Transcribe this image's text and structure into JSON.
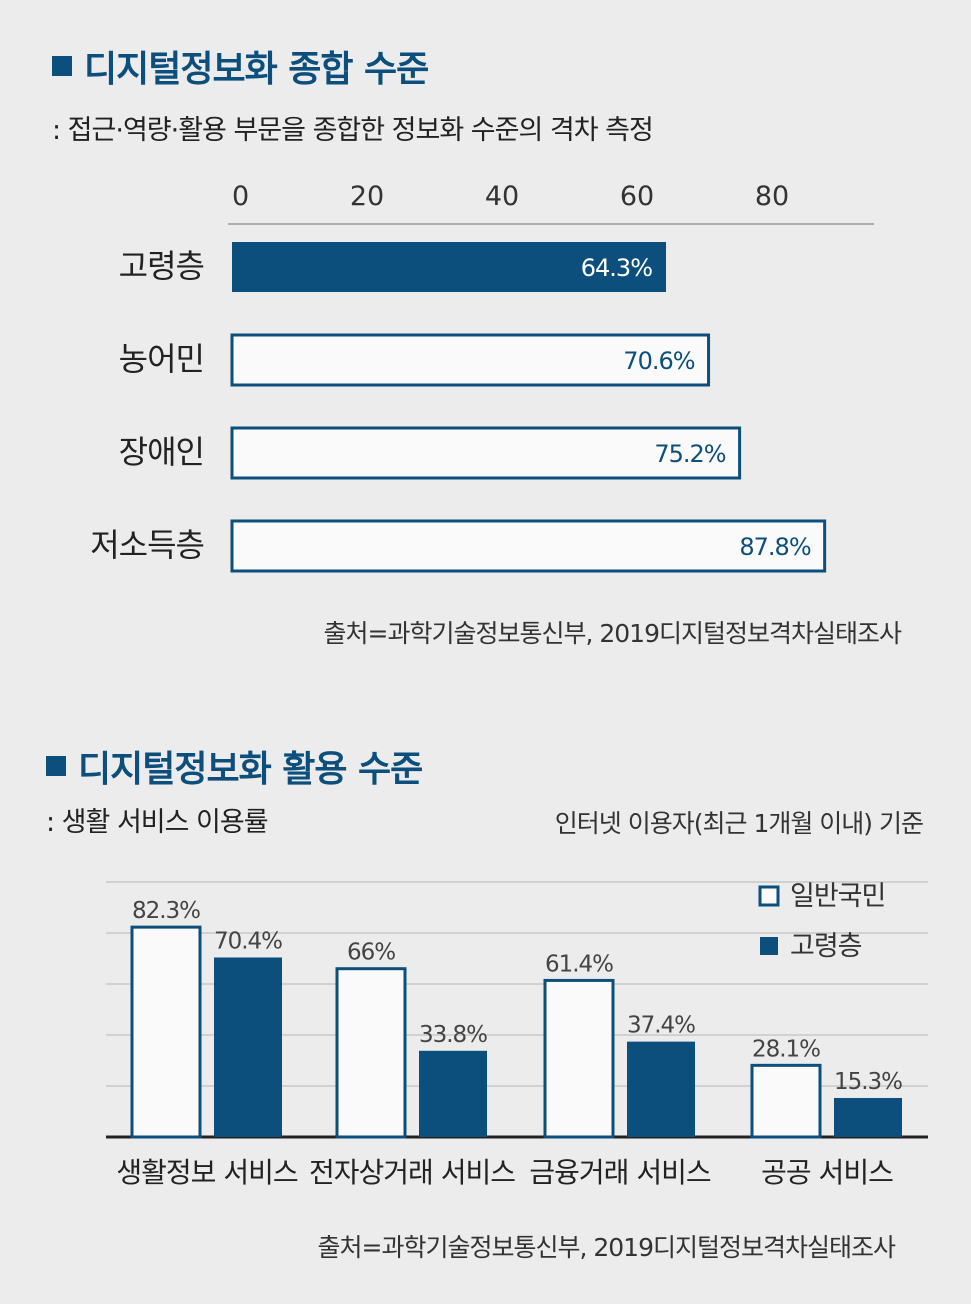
{
  "chart_data": [
    {
      "type": "bar",
      "orientation": "horizontal",
      "title": "디지털정보화 종합 수준",
      "subtitle": ": 접근·역량·활용 부문을 종합한 정보화 수준의 격차 측정",
      "categories": [
        "고령층",
        "농어민",
        "장애인",
        "저소득층"
      ],
      "values": [
        64.3,
        70.6,
        75.2,
        87.8
      ],
      "value_labels": [
        "64.3%",
        "70.6%",
        "75.2%",
        "87.8%"
      ],
      "highlight_index": 0,
      "xticks": [
        0,
        20,
        40,
        60,
        80
      ],
      "tick_labels": [
        "0",
        "20",
        "40",
        "60",
        "80"
      ],
      "xlim": [
        0,
        95
      ],
      "source": "출처=과학기술정보통신부, 2019디지털정보격차실태조사"
    },
    {
      "type": "bar",
      "title": "디지털정보화 활용 수준",
      "subtitle": ": 생활 서비스 이용률",
      "note": "인터넷 이용자(최근 1개월 이내) 기준",
      "categories": [
        "생활정보 서비스",
        "전자상거래 서비스",
        "금융거래 서비스",
        "공공 서비스"
      ],
      "series": [
        {
          "name": "일반국민",
          "values": [
            82.3,
            66,
            61.4,
            28.1
          ],
          "labels": [
            "82.3%",
            "66%",
            "61.4%",
            "28.1%"
          ]
        },
        {
          "name": "고령층",
          "values": [
            70.4,
            33.8,
            37.4,
            15.3
          ],
          "labels": [
            "70.4%",
            "33.8%",
            "37.4%",
            "15.3%"
          ]
        }
      ],
      "ylim": [
        0,
        100
      ],
      "legend_position": "top-right",
      "grid": true,
      "source": "출처=과학기술정보통신부, 2019디지털정보격차실태조사"
    }
  ],
  "colors": {
    "navy": "#0d4f7c",
    "white": "#fafafa",
    "background": "#ececec",
    "grid": "#c8c8c8"
  }
}
